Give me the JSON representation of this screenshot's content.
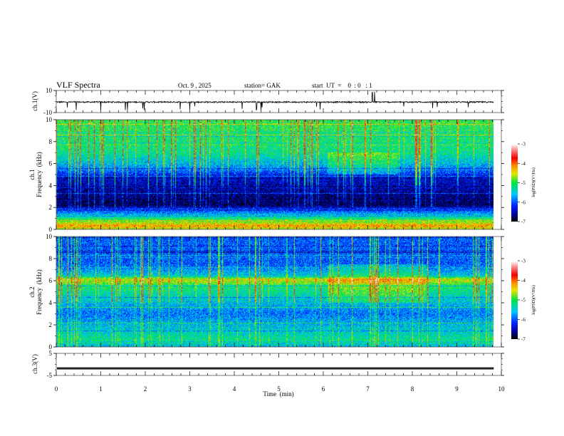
{
  "header": {
    "title": "VLF Spectra",
    "date": "Oct. 9  , 2025",
    "station": "station= GAK",
    "start_ut": "start  UT  =    0  : 0   : 1"
  },
  "colors": {
    "trace": "#000000",
    "background": "#ffffff"
  },
  "chart_data": [
    {
      "type": "line",
      "name": "ch1-waveform",
      "ylabel": "ch.1(V)",
      "ylim": [
        -10,
        10
      ],
      "yticks": [
        "10",
        "-10"
      ],
      "xlim": [
        0,
        10
      ],
      "data_end_min": 9.83,
      "baseline_v": -0.5,
      "noise_amplitude_v": 1,
      "spikes_min": [
        0.45,
        1.0,
        1.55,
        1.6,
        3.0,
        4.5,
        4.6,
        7.1,
        7.15
      ]
    },
    {
      "type": "heatmap",
      "name": "ch1-spectrogram",
      "ylabel_line1": "ch.1",
      "ylabel_line2": "Frequency  (kHz)",
      "ylim": [
        0,
        10
      ],
      "yticks": [
        "0",
        "2",
        "4",
        "6",
        "8",
        "10"
      ],
      "xlim": [
        0,
        10
      ],
      "colorbar": {
        "label": "log(PSD)(V²/Hz)",
        "range": [
          -7,
          -3
        ],
        "ticks": [
          "-3",
          "-4",
          "-5",
          "-6",
          "-7"
        ]
      },
      "profile_khz": [
        [
          0,
          -4.6
        ],
        [
          0.3,
          -4.2
        ],
        [
          1.0,
          -5.2
        ],
        [
          1.8,
          -6.2
        ],
        [
          2.2,
          -6.8
        ],
        [
          4.8,
          -6.4
        ],
        [
          5.5,
          -5.8
        ],
        [
          7.0,
          -5.2
        ],
        [
          10,
          -5.0
        ]
      ]
    },
    {
      "type": "heatmap",
      "name": "ch2-spectrogram",
      "ylabel_line1": "ch.2",
      "ylabel_line2": "Frequency  (kHz)",
      "ylim": [
        0,
        10
      ],
      "yticks": [
        "0",
        "2",
        "4",
        "6",
        "8",
        "10"
      ],
      "xlim": [
        0,
        10
      ],
      "colorbar": {
        "label": "log(PSD)(V²/Hz)",
        "range": [
          -7,
          -3
        ],
        "ticks": [
          "-3",
          "-4",
          "-5",
          "-6",
          "-7"
        ]
      },
      "profile_khz": [
        [
          0,
          -5.6
        ],
        [
          0.5,
          -5.2
        ],
        [
          2.0,
          -5.6
        ],
        [
          3.0,
          -5.9
        ],
        [
          4.5,
          -5.4
        ],
        [
          5.5,
          -5.1
        ],
        [
          6.1,
          -4.5
        ],
        [
          6.5,
          -5.5
        ],
        [
          7.5,
          -6.0
        ],
        [
          10,
          -6.0
        ]
      ]
    },
    {
      "type": "line",
      "name": "ch3-waveform",
      "ylabel": "ch.3(V)",
      "ylim": [
        -5,
        5
      ],
      "yticks": [
        "5",
        "-5"
      ],
      "xlim": [
        0,
        10
      ],
      "data_end_min": 9.83,
      "level_v": -1.8
    }
  ],
  "x_axis": {
    "label": "Time  (min)",
    "ticks": [
      "0",
      "1",
      "2",
      "3",
      "4",
      "5",
      "6",
      "7",
      "8",
      "9",
      "10"
    ]
  }
}
